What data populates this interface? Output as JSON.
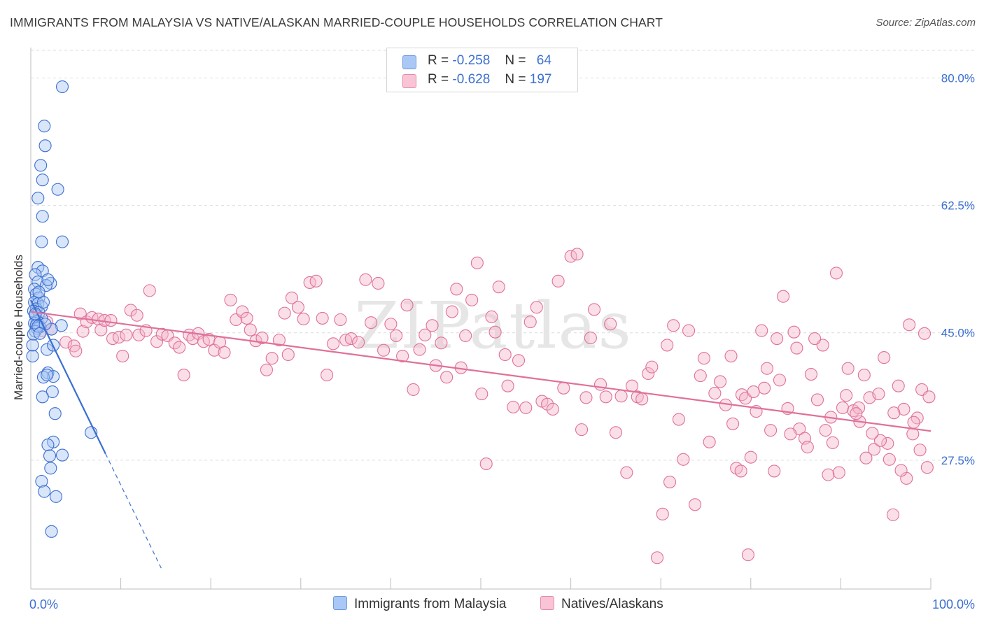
{
  "chart_data": {
    "type": "scatter",
    "title": "IMMIGRANTS FROM MALAYSIA VS NATIVE/ALASKAN MARRIED-COUPLE HOUSEHOLDS CORRELATION CHART",
    "source": "Source: ZipAtlas.com",
    "ylabel": "Married-couple Households",
    "xlabel": "",
    "xlim": [
      0,
      100
    ],
    "ylim": [
      9.8,
      83.8
    ],
    "x_tick_labels": [
      "0.0%",
      "100.0%"
    ],
    "y_tick_labels": [
      "80.0%",
      "62.5%",
      "45.0%",
      "27.5%"
    ],
    "y_ticks": [
      80.0,
      62.5,
      45.0,
      27.5
    ],
    "grid": true,
    "watermark": "ZIPatlas",
    "colors": {
      "blue": "#3b6fd1",
      "blue_fill": "#aac8f5",
      "pink": "#e0709a",
      "pink_fill": "#f5b7cb"
    },
    "legend": [
      {
        "r_label": "R =",
        "r_value": "-0.258",
        "n_label": "N =",
        "n_value": "64"
      },
      {
        "r_label": "R =",
        "r_value": "-0.628",
        "n_label": "N =",
        "n_value": "197"
      }
    ],
    "series": [
      {
        "name": "Immigrants from Malaysia",
        "color": "#3b6fd1",
        "trend": {
          "x0": 0,
          "y0": 49.5,
          "x1": 8.3,
          "y1": 28.4,
          "dashed_to_x": 14.5
        },
        "points": [
          [
            3.5,
            78.8
          ],
          [
            1.5,
            73.4
          ],
          [
            1.6,
            70.7
          ],
          [
            1.1,
            68.0
          ],
          [
            1.3,
            66.0
          ],
          [
            3.0,
            64.7
          ],
          [
            0.8,
            63.5
          ],
          [
            1.3,
            61.0
          ],
          [
            1.2,
            57.5
          ],
          [
            3.5,
            57.5
          ],
          [
            0.8,
            54.0
          ],
          [
            1.3,
            53.5
          ],
          [
            0.5,
            53.0
          ],
          [
            0.8,
            52.0
          ],
          [
            2.2,
            51.8
          ],
          [
            1.7,
            51.5
          ],
          [
            0.4,
            51.0
          ],
          [
            0.6,
            50.3
          ],
          [
            0.9,
            49.8
          ],
          [
            0.4,
            49.2
          ],
          [
            0.8,
            49.0
          ],
          [
            1.2,
            48.6
          ],
          [
            0.6,
            48.3
          ],
          [
            0.3,
            48.0
          ],
          [
            0.9,
            47.8
          ],
          [
            0.5,
            47.4
          ],
          [
            1.2,
            47.0
          ],
          [
            0.7,
            46.6
          ],
          [
            0.4,
            46.3
          ],
          [
            0.6,
            46.0
          ],
          [
            3.4,
            46.0
          ],
          [
            1.0,
            45.8
          ],
          [
            0.7,
            45.6
          ],
          [
            0.5,
            45.2
          ],
          [
            2.3,
            45.5
          ],
          [
            0.3,
            44.8
          ],
          [
            0.2,
            43.3
          ],
          [
            1.8,
            42.7
          ],
          [
            2.5,
            43.3
          ],
          [
            0.2,
            41.8
          ],
          [
            1.9,
            39.5
          ],
          [
            2.5,
            39.0
          ],
          [
            1.4,
            38.9
          ],
          [
            1.8,
            39.2
          ],
          [
            2.4,
            36.9
          ],
          [
            1.3,
            36.2
          ],
          [
            2.7,
            33.9
          ],
          [
            6.7,
            31.3
          ],
          [
            2.5,
            30.0
          ],
          [
            1.9,
            29.6
          ],
          [
            2.1,
            28.1
          ],
          [
            3.5,
            28.2
          ],
          [
            2.2,
            26.4
          ],
          [
            1.2,
            24.6
          ],
          [
            1.5,
            23.2
          ],
          [
            2.8,
            22.5
          ],
          [
            2.3,
            17.7
          ],
          [
            0.8,
            45.9
          ],
          [
            1.6,
            46.2
          ],
          [
            1.0,
            44.9
          ],
          [
            0.5,
            47.6
          ],
          [
            1.4,
            49.2
          ],
          [
            0.9,
            50.6
          ],
          [
            1.9,
            52.3
          ]
        ]
      },
      {
        "name": "Natives/Alaskans",
        "color": "#e0709a",
        "trend": {
          "x0": 0,
          "y0": 47.9,
          "x1": 100,
          "y1": 31.5
        },
        "points": [
          [
            1.2,
            45.3
          ],
          [
            1.8,
            46.5
          ],
          [
            2.3,
            45.5
          ],
          [
            3.9,
            43.7
          ],
          [
            4.8,
            43.2
          ],
          [
            5.0,
            42.5
          ],
          [
            5.5,
            47.6
          ],
          [
            5.8,
            45.2
          ],
          [
            6.2,
            46.5
          ],
          [
            6.8,
            47.1
          ],
          [
            7.5,
            46.9
          ],
          [
            7.8,
            45.4
          ],
          [
            8.2,
            46.7
          ],
          [
            8.9,
            46.7
          ],
          [
            9.1,
            44.2
          ],
          [
            9.8,
            44.4
          ],
          [
            10.2,
            41.8
          ],
          [
            10.6,
            44.7
          ],
          [
            11.1,
            48.1
          ],
          [
            11.8,
            47.4
          ],
          [
            12.0,
            44.7
          ],
          [
            12.8,
            45.3
          ],
          [
            13.2,
            50.8
          ],
          [
            14.0,
            43.8
          ],
          [
            14.6,
            44.8
          ],
          [
            15.2,
            44.6
          ],
          [
            16.0,
            43.6
          ],
          [
            16.5,
            43.0
          ],
          [
            17.0,
            39.2
          ],
          [
            17.6,
            44.7
          ],
          [
            18.0,
            44.2
          ],
          [
            18.6,
            44.9
          ],
          [
            19.2,
            43.8
          ],
          [
            19.8,
            44.1
          ],
          [
            20.4,
            42.6
          ],
          [
            21.0,
            43.7
          ],
          [
            21.5,
            42.3
          ],
          [
            22.2,
            49.5
          ],
          [
            22.8,
            46.8
          ],
          [
            23.5,
            47.9
          ],
          [
            24.0,
            47.0
          ],
          [
            24.4,
            45.4
          ],
          [
            25.0,
            43.9
          ],
          [
            25.7,
            44.3
          ],
          [
            26.2,
            39.9
          ],
          [
            26.8,
            41.5
          ],
          [
            27.6,
            44.0
          ],
          [
            28.2,
            47.7
          ],
          [
            28.6,
            42.0
          ],
          [
            29.0,
            49.8
          ],
          [
            29.7,
            48.5
          ],
          [
            30.3,
            46.9
          ],
          [
            31.0,
            51.9
          ],
          [
            31.7,
            52.1
          ],
          [
            32.4,
            47.0
          ],
          [
            32.9,
            39.2
          ],
          [
            33.6,
            43.5
          ],
          [
            34.4,
            46.8
          ],
          [
            35.0,
            44.0
          ],
          [
            35.6,
            44.2
          ],
          [
            36.4,
            43.7
          ],
          [
            37.2,
            52.3
          ],
          [
            37.8,
            46.4
          ],
          [
            38.6,
            51.8
          ],
          [
            39.2,
            42.6
          ],
          [
            40.0,
            46.2
          ],
          [
            40.6,
            44.6
          ],
          [
            41.3,
            41.8
          ],
          [
            41.8,
            48.8
          ],
          [
            42.5,
            37.2
          ],
          [
            43.2,
            42.7
          ],
          [
            43.8,
            44.7
          ],
          [
            44.6,
            46.0
          ],
          [
            45.0,
            40.5
          ],
          [
            45.6,
            43.6
          ],
          [
            46.2,
            38.9
          ],
          [
            46.8,
            47.9
          ],
          [
            47.3,
            51.0
          ],
          [
            47.8,
            40.2
          ],
          [
            48.3,
            44.6
          ],
          [
            49.0,
            49.5
          ],
          [
            49.6,
            54.6
          ],
          [
            50.1,
            36.6
          ],
          [
            50.6,
            27.0
          ],
          [
            51.2,
            47.2
          ],
          [
            51.6,
            45.1
          ],
          [
            52.0,
            51.3
          ],
          [
            52.7,
            42.0
          ],
          [
            53.0,
            37.7
          ],
          [
            53.6,
            34.8
          ],
          [
            54.2,
            41.2
          ],
          [
            55.0,
            34.7
          ],
          [
            55.5,
            46.5
          ],
          [
            56.2,
            48.5
          ],
          [
            56.8,
            35.6
          ],
          [
            57.4,
            35.2
          ],
          [
            58.0,
            34.5
          ],
          [
            58.6,
            52.1
          ],
          [
            59.2,
            37.4
          ],
          [
            60.0,
            55.5
          ],
          [
            60.7,
            55.8
          ],
          [
            61.2,
            31.7
          ],
          [
            61.7,
            36.1
          ],
          [
            62.2,
            44.3
          ],
          [
            62.6,
            48.2
          ],
          [
            63.3,
            37.9
          ],
          [
            63.9,
            36.2
          ],
          [
            64.4,
            46.2
          ],
          [
            65.0,
            31.3
          ],
          [
            65.6,
            36.3
          ],
          [
            66.2,
            25.8
          ],
          [
            66.8,
            37.7
          ],
          [
            67.4,
            36.2
          ],
          [
            67.9,
            35.9
          ],
          [
            68.6,
            39.4
          ],
          [
            69.0,
            40.3
          ],
          [
            69.6,
            14.1
          ],
          [
            70.2,
            20.1
          ],
          [
            70.7,
            43.3
          ],
          [
            71.4,
            46.0
          ],
          [
            72.0,
            33.1
          ],
          [
            72.5,
            27.6
          ],
          [
            73.1,
            45.3
          ],
          [
            73.8,
            21.4
          ],
          [
            74.4,
            39.1
          ],
          [
            74.8,
            41.5
          ],
          [
            75.4,
            30.0
          ],
          [
            76.0,
            36.7
          ],
          [
            76.6,
            38.3
          ],
          [
            77.2,
            35.1
          ],
          [
            77.8,
            41.8
          ],
          [
            78.4,
            26.4
          ],
          [
            79.0,
            36.5
          ],
          [
            79.4,
            36.0
          ],
          [
            80.0,
            27.9
          ],
          [
            80.6,
            34.2
          ],
          [
            81.2,
            45.3
          ],
          [
            81.8,
            40.1
          ],
          [
            82.2,
            31.6
          ],
          [
            82.9,
            44.2
          ],
          [
            83.6,
            50.0
          ],
          [
            84.1,
            34.6
          ],
          [
            84.8,
            45.1
          ],
          [
            85.4,
            31.8
          ],
          [
            86.0,
            30.5
          ],
          [
            86.7,
            39.3
          ],
          [
            87.4,
            35.8
          ],
          [
            88.0,
            43.3
          ],
          [
            88.6,
            25.5
          ],
          [
            89.1,
            29.9
          ],
          [
            89.5,
            53.2
          ],
          [
            90.2,
            34.7
          ],
          [
            90.8,
            40.1
          ],
          [
            91.4,
            34.3
          ],
          [
            92.0,
            34.7
          ],
          [
            92.6,
            39.2
          ],
          [
            93.2,
            36.1
          ],
          [
            93.7,
            29.0
          ],
          [
            94.2,
            36.6
          ],
          [
            94.8,
            41.6
          ],
          [
            95.4,
            27.6
          ],
          [
            95.8,
            20.0
          ],
          [
            96.4,
            37.7
          ],
          [
            97.0,
            34.5
          ],
          [
            97.6,
            46.1
          ],
          [
            98.0,
            31.1
          ],
          [
            98.5,
            33.3
          ],
          [
            99.0,
            37.2
          ],
          [
            99.6,
            26.5
          ],
          [
            99.8,
            36.2
          ],
          [
            99.3,
            44.9
          ],
          [
            98.8,
            28.9
          ],
          [
            98.1,
            32.7
          ],
          [
            97.3,
            25.0
          ],
          [
            96.7,
            26.1
          ],
          [
            95.9,
            34.0
          ],
          [
            95.2,
            29.8
          ],
          [
            94.4,
            30.2
          ],
          [
            93.5,
            31.2
          ],
          [
            92.8,
            27.8
          ],
          [
            92.1,
            32.8
          ],
          [
            91.7,
            33.9
          ],
          [
            90.6,
            36.4
          ],
          [
            89.8,
            25.8
          ],
          [
            88.9,
            33.4
          ],
          [
            88.3,
            31.6
          ],
          [
            87.1,
            44.2
          ],
          [
            86.3,
            29.3
          ],
          [
            85.1,
            42.9
          ],
          [
            84.4,
            31.1
          ],
          [
            83.2,
            38.5
          ],
          [
            82.6,
            26.0
          ],
          [
            81.5,
            37.4
          ],
          [
            80.3,
            36.9
          ],
          [
            79.7,
            14.5
          ],
          [
            78.9,
            26.0
          ],
          [
            78.0,
            32.5
          ],
          [
            71.0,
            24.5
          ]
        ]
      }
    ]
  },
  "legend_bottom": [
    "Immigrants from Malaysia",
    "Natives/Alaskans"
  ]
}
